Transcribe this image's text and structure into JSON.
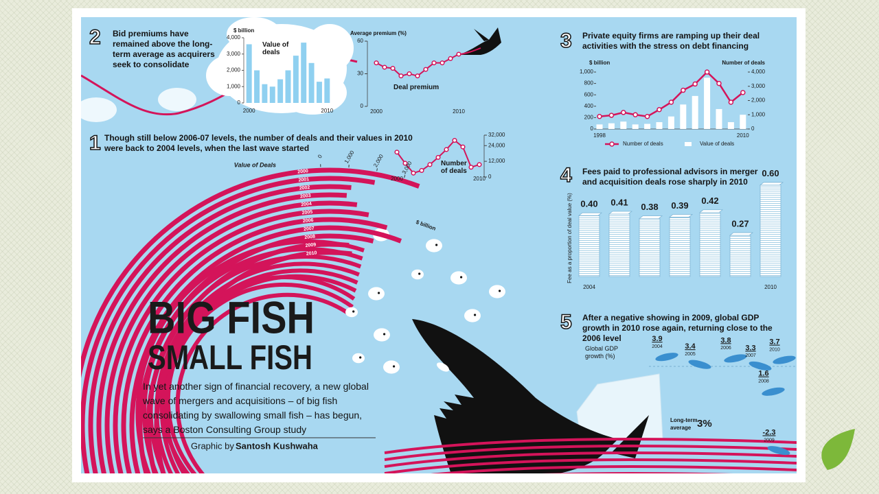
{
  "title": "BIG FISH",
  "subtitle": "SMALL FISH",
  "intro": "In yet another sign of financial recovery, a new global wave of mergers and acquisitions – of big fish consolidating by swallowing small fish – has begun, says a Boston Consulting Group study",
  "credit_prefix": "Graphic by",
  "credit_name": "Santosh Kushwaha",
  "sections": [
    {
      "number": "2",
      "heading": "Bid premiums have remained above the long-term average as acquirers seek to consolidate"
    },
    {
      "number": "1",
      "heading": "Though still below 2006-07 levels, the number of deals and their values in 2010 were back to 2004 levels, when the last wave started"
    },
    {
      "number": "3",
      "heading": "Private equity firms are ramping up their deal activities with the stress on debt financing"
    },
    {
      "number": "4",
      "heading": "Fees paid to professional advisors in merger and acquisition deals rose sharply in 2010"
    },
    {
      "number": "5",
      "heading": "After a negative showing in 2009, global GDP growth in 2010 rose again, returning close to the 2006 level"
    }
  ],
  "chart_data": [
    {
      "type": "bar",
      "title": "Value of deals",
      "y_label": "$ billion",
      "categories": [
        "2000",
        null,
        null,
        null,
        null,
        null,
        null,
        null,
        null,
        null,
        "2010"
      ],
      "values": [
        3600,
        2000,
        1150,
        1000,
        1450,
        2000,
        2900,
        3700,
        2450,
        1300,
        1500
      ],
      "color": "#8fd0f0",
      "ylim": [
        0,
        4000
      ],
      "yticks": [
        0,
        {
          "value": 1000,
          "label": "1,000"
        },
        {
          "value": 2000,
          "label": "2,000"
        },
        {
          "value": 3000,
          "label": "3,000"
        },
        {
          "value": 4000,
          "label": "4,000"
        }
      ]
    },
    {
      "type": "line",
      "title": "Average premium (%)",
      "annotation": "Deal premium",
      "categories": [
        "2000",
        null,
        null,
        null,
        null,
        null,
        null,
        null,
        null,
        null,
        "2010"
      ],
      "values": [
        40,
        36,
        35,
        28,
        30,
        28,
        34,
        40,
        40,
        44,
        48
      ],
      "color": "#d4145a",
      "ylim": [
        0,
        60
      ],
      "yticks": [
        0,
        30,
        60
      ]
    },
    {
      "type": "line",
      "annotation": "Number of deals",
      "categories": [
        "2000",
        null,
        null,
        null,
        null,
        null,
        null,
        null,
        null,
        null,
        "2010"
      ],
      "values": [
        19000,
        10500,
        3000,
        5000,
        9500,
        15000,
        21000,
        28000,
        23000,
        7500,
        9500
      ],
      "color": "#d4145a",
      "ylim": [
        0,
        32000
      ],
      "yticks": [
        0,
        {
          "value": 12000,
          "label": "12,000"
        },
        {
          "value": 24000,
          "label": "24,000"
        },
        {
          "value": 32000,
          "label": "32,000"
        }
      ]
    },
    {
      "type": "arc",
      "title": "Value of Deals",
      "unit": "$ billion",
      "categories": [
        "2000",
        "2001",
        "2002",
        "2003",
        "2004",
        "2005",
        "2006",
        "2007",
        "2008",
        "2009",
        "2010"
      ],
      "values": [
        3600,
        2000,
        1150,
        1000,
        1450,
        2000,
        2900,
        3700,
        2450,
        1300,
        1500
      ],
      "color": "#d4145a",
      "xlim": [
        0,
        4000
      ],
      "xticks": [
        0,
        {
          "value": 1000,
          "label": "1,000"
        },
        {
          "value": 2000,
          "label": "2,000"
        },
        {
          "value": 3000,
          "label": "3,000"
        }
      ]
    },
    {
      "type": "combo",
      "y_label": "$ billion",
      "y2_label": "Number of deals",
      "categories": [
        "1998",
        null,
        null,
        null,
        null,
        null,
        null,
        null,
        null,
        null,
        null,
        null,
        "2010"
      ],
      "ylim": [
        0,
        1000
      ],
      "yticks": [
        0,
        200,
        400,
        600,
        800,
        {
          "value": 1000,
          "label": "1,000"
        }
      ],
      "y2lim": [
        0,
        4000
      ],
      "y2ticks": [
        0,
        {
          "value": 1000,
          "label": "1,000"
        },
        {
          "value": 2000,
          "label": "2,000"
        },
        {
          "value": 3000,
          "label": "3,000"
        },
        {
          "value": 4000,
          "label": "4,000"
        }
      ],
      "series": [
        {
          "name": "Number of deals",
          "color": "#d4145a",
          "kind": "line",
          "axis": "y2",
          "values": [
            880,
            960,
            1160,
            1000,
            880,
            1360,
            1880,
            2720,
            3160,
            4000,
            3200,
            1880,
            2560
          ]
        },
        {
          "name": "Value of deals",
          "color": "#ffffff",
          "kind": "bar",
          "values": [
            80,
            100,
            130,
            80,
            90,
            120,
            220,
            430,
            580,
            900,
            350,
            120,
            250
          ]
        }
      ]
    },
    {
      "type": "pictograph",
      "y_label": "Fee as a proportion of deal value (%)",
      "categories": [
        "2004",
        null,
        null,
        null,
        null,
        null,
        "2010"
      ],
      "values": [
        0.4,
        0.41,
        0.38,
        0.39,
        0.42,
        0.27,
        0.6
      ],
      "value_labels": [
        "0.40",
        "0.41",
        "0.38",
        "0.39",
        "0.42",
        "0.27",
        "0.60"
      ],
      "color": "#ffffff"
    },
    {
      "type": "dolphin",
      "y_label": "Global GDP growth (%)",
      "categories": [
        "2004",
        "2005",
        "2006",
        "2007",
        "2008",
        "2009",
        "2010"
      ],
      "values": [
        3.9,
        3.4,
        3.8,
        3.3,
        1.6,
        -2.3,
        3.7
      ],
      "color": "#3a8fcf",
      "average_label": "Long-term average",
      "average": {
        "value": 3,
        "label": "3%"
      }
    }
  ]
}
